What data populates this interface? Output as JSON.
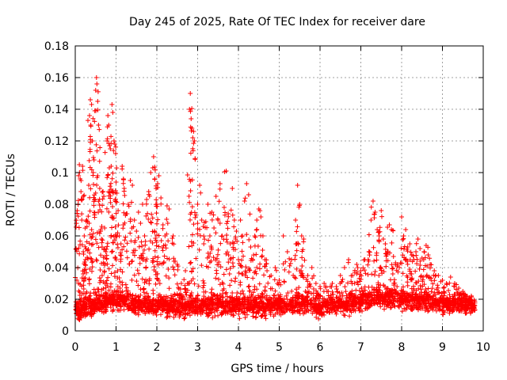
{
  "chart_data": {
    "type": "scatter",
    "title": "Day 245 of 2025, Rate Of TEC Index for receiver dare",
    "xlabel": "GPS time / hours",
    "ylabel": "ROTI / TECUs",
    "xlim": [
      0,
      10
    ],
    "ylim": [
      0,
      0.18
    ],
    "xticks": [
      "0",
      "1",
      "2",
      "3",
      "4",
      "5",
      "6",
      "7",
      "8",
      "9",
      "10"
    ],
    "yticks": [
      "0",
      "0.02",
      "0.04",
      "0.06",
      "0.08",
      "0.1",
      "0.12",
      "0.14",
      "0.16",
      "0.18"
    ],
    "grid": true,
    "marker": "+",
    "marker_color": "#ff0000",
    "series": [
      {
        "name": "ROTI",
        "points": [
          [
            0.02,
            0.052
          ],
          [
            0.05,
            0.076
          ],
          [
            0.08,
            0.03
          ],
          [
            0.1,
            0.105
          ],
          [
            0.12,
            0.096
          ],
          [
            0.14,
            0.088
          ],
          [
            0.16,
            0.07
          ],
          [
            0.18,
            0.104
          ],
          [
            0.2,
            0.085
          ],
          [
            0.22,
            0.06
          ],
          [
            0.25,
            0.045
          ],
          [
            0.28,
            0.07
          ],
          [
            0.3,
            0.069
          ],
          [
            0.33,
            0.092
          ],
          [
            0.35,
            0.136
          ],
          [
            0.37,
            0.146
          ],
          [
            0.38,
            0.13
          ],
          [
            0.4,
            0.143
          ],
          [
            0.42,
            0.12
          ],
          [
            0.44,
            0.1
          ],
          [
            0.46,
            0.108
          ],
          [
            0.48,
            0.139
          ],
          [
            0.5,
            0.152
          ],
          [
            0.52,
            0.16
          ],
          [
            0.53,
            0.156
          ],
          [
            0.55,
            0.145
          ],
          [
            0.57,
            0.13
          ],
          [
            0.6,
            0.09
          ],
          [
            0.62,
            0.063
          ],
          [
            0.65,
            0.066
          ],
          [
            0.68,
            0.088
          ],
          [
            0.7,
            0.085
          ],
          [
            0.72,
            0.065
          ],
          [
            0.75,
            0.05
          ],
          [
            0.78,
            0.12
          ],
          [
            0.8,
            0.136
          ],
          [
            0.82,
            0.13
          ],
          [
            0.84,
            0.117
          ],
          [
            0.86,
            0.115
          ],
          [
            0.88,
            0.104
          ],
          [
            0.9,
            0.143
          ],
          [
            0.92,
            0.138
          ],
          [
            0.95,
            0.12
          ],
          [
            0.97,
            0.118
          ],
          [
            0.99,
            0.112
          ],
          [
            1.0,
            0.094
          ],
          [
            1.02,
            0.087
          ],
          [
            1.05,
            0.076
          ],
          [
            1.08,
            0.06
          ],
          [
            1.12,
            0.055
          ],
          [
            1.15,
            0.104
          ],
          [
            1.18,
            0.096
          ],
          [
            1.2,
            0.09
          ],
          [
            1.25,
            0.074
          ],
          [
            1.3,
            0.08
          ],
          [
            1.35,
            0.095
          ],
          [
            1.4,
            0.092
          ],
          [
            1.45,
            0.07
          ],
          [
            1.5,
            0.063
          ],
          [
            1.55,
            0.075
          ],
          [
            1.6,
            0.068
          ],
          [
            1.65,
            0.08
          ],
          [
            1.7,
            0.06
          ],
          [
            1.75,
            0.083
          ],
          [
            1.8,
            0.088
          ],
          [
            1.85,
            0.1
          ],
          [
            1.9,
            0.103
          ],
          [
            1.92,
            0.11
          ],
          [
            1.95,
            0.096
          ],
          [
            1.98,
            0.09
          ],
          [
            2.0,
            0.08
          ],
          [
            2.02,
            0.093
          ],
          [
            2.05,
            0.098
          ],
          [
            2.1,
            0.084
          ],
          [
            2.15,
            0.067
          ],
          [
            2.2,
            0.06
          ],
          [
            2.25,
            0.079
          ],
          [
            2.3,
            0.077
          ],
          [
            2.4,
            0.06
          ],
          [
            2.45,
            0.044
          ],
          [
            2.5,
            0.042
          ],
          [
            2.6,
            0.03
          ],
          [
            2.7,
            0.038
          ],
          [
            2.75,
            0.03
          ],
          [
            2.8,
            0.14
          ],
          [
            2.82,
            0.15
          ],
          [
            2.84,
            0.134
          ],
          [
            2.86,
            0.128
          ],
          [
            2.88,
            0.122
          ],
          [
            2.9,
            0.126
          ],
          [
            2.92,
            0.12
          ],
          [
            3.0,
            0.08
          ],
          [
            3.05,
            0.092
          ],
          [
            3.1,
            0.07
          ],
          [
            3.15,
            0.055
          ],
          [
            3.2,
            0.069
          ],
          [
            3.25,
            0.08
          ],
          [
            3.3,
            0.06
          ],
          [
            3.35,
            0.075
          ],
          [
            3.4,
            0.065
          ],
          [
            3.45,
            0.085
          ],
          [
            3.5,
            0.07
          ],
          [
            3.55,
            0.093
          ],
          [
            3.6,
            0.06
          ],
          [
            3.65,
            0.078
          ],
          [
            3.7,
            0.101
          ],
          [
            3.75,
            0.074
          ],
          [
            3.8,
            0.055
          ],
          [
            3.85,
            0.09
          ],
          [
            3.9,
            0.07
          ],
          [
            3.95,
            0.063
          ],
          [
            4.0,
            0.045
          ],
          [
            4.05,
            0.07
          ],
          [
            4.1,
            0.06
          ],
          [
            4.15,
            0.082
          ],
          [
            4.2,
            0.093
          ],
          [
            4.25,
            0.086
          ],
          [
            4.3,
            0.053
          ],
          [
            4.35,
            0.045
          ],
          [
            4.4,
            0.06
          ],
          [
            4.45,
            0.07
          ],
          [
            4.5,
            0.077
          ],
          [
            4.55,
            0.072
          ],
          [
            4.6,
            0.06
          ],
          [
            4.65,
            0.045
          ],
          [
            4.7,
            0.038
          ],
          [
            4.8,
            0.035
          ],
          [
            4.9,
            0.04
          ],
          [
            5.0,
            0.032
          ],
          [
            5.1,
            0.06
          ],
          [
            5.2,
            0.05
          ],
          [
            5.3,
            0.045
          ],
          [
            5.4,
            0.07
          ],
          [
            5.45,
            0.092
          ],
          [
            5.5,
            0.08
          ],
          [
            5.55,
            0.06
          ],
          [
            5.6,
            0.058
          ],
          [
            5.7,
            0.035
          ],
          [
            5.8,
            0.04
          ],
          [
            5.9,
            0.03
          ],
          [
            6.0,
            0.028
          ],
          [
            6.1,
            0.03
          ],
          [
            6.2,
            0.025
          ],
          [
            6.3,
            0.03
          ],
          [
            6.4,
            0.028
          ],
          [
            6.5,
            0.035
          ],
          [
            6.6,
            0.04
          ],
          [
            6.7,
            0.045
          ],
          [
            6.8,
            0.035
          ],
          [
            6.9,
            0.042
          ],
          [
            7.0,
            0.038
          ],
          [
            7.1,
            0.045
          ],
          [
            7.2,
            0.05
          ],
          [
            7.25,
            0.07
          ],
          [
            7.3,
            0.082
          ],
          [
            7.35,
            0.075
          ],
          [
            7.4,
            0.064
          ],
          [
            7.45,
            0.06
          ],
          [
            7.5,
            0.076
          ],
          [
            7.55,
            0.058
          ],
          [
            7.6,
            0.055
          ],
          [
            7.65,
            0.05
          ],
          [
            7.7,
            0.067
          ],
          [
            7.75,
            0.064
          ],
          [
            7.8,
            0.047
          ],
          [
            7.85,
            0.043
          ],
          [
            7.9,
            0.042
          ],
          [
            8.0,
            0.072
          ],
          [
            8.05,
            0.06
          ],
          [
            8.1,
            0.064
          ],
          [
            8.15,
            0.053
          ],
          [
            8.2,
            0.055
          ],
          [
            8.25,
            0.048
          ],
          [
            8.3,
            0.045
          ],
          [
            8.35,
            0.05
          ],
          [
            8.4,
            0.058
          ],
          [
            8.45,
            0.052
          ],
          [
            8.5,
            0.046
          ],
          [
            8.55,
            0.05
          ],
          [
            8.6,
            0.054
          ],
          [
            8.65,
            0.048
          ],
          [
            8.7,
            0.042
          ],
          [
            8.8,
            0.038
          ],
          [
            8.9,
            0.035
          ],
          [
            9.0,
            0.032
          ],
          [
            9.1,
            0.03
          ],
          [
            9.2,
            0.034
          ],
          [
            9.3,
            0.03
          ],
          [
            9.4,
            0.027
          ],
          [
            9.5,
            0.025
          ],
          [
            9.6,
            0.022
          ],
          [
            9.7,
            0.02
          ],
          [
            9.75,
            0.016
          ]
        ]
      }
    ],
    "band": {
      "description": "dense background of ROTI values between about 0.005 and 0.035 TECU/min across 0 to 9.8 hours",
      "baseline_curve": [
        [
          0,
          0.013
        ],
        [
          0.5,
          0.016
        ],
        [
          1.0,
          0.02
        ],
        [
          1.5,
          0.017
        ],
        [
          2.0,
          0.016
        ],
        [
          2.5,
          0.015
        ],
        [
          3.0,
          0.016
        ],
        [
          3.5,
          0.017
        ],
        [
          4.0,
          0.016
        ],
        [
          4.5,
          0.015
        ],
        [
          5.0,
          0.016
        ],
        [
          5.5,
          0.018
        ],
        [
          6.0,
          0.015
        ],
        [
          6.5,
          0.017
        ],
        [
          7.0,
          0.018
        ],
        [
          7.5,
          0.021
        ],
        [
          8.0,
          0.02
        ],
        [
          8.5,
          0.019
        ],
        [
          9.0,
          0.018
        ],
        [
          9.5,
          0.017
        ],
        [
          9.8,
          0.016
        ]
      ],
      "max_x": 9.8,
      "spread": 0.009,
      "count": 2600
    }
  }
}
